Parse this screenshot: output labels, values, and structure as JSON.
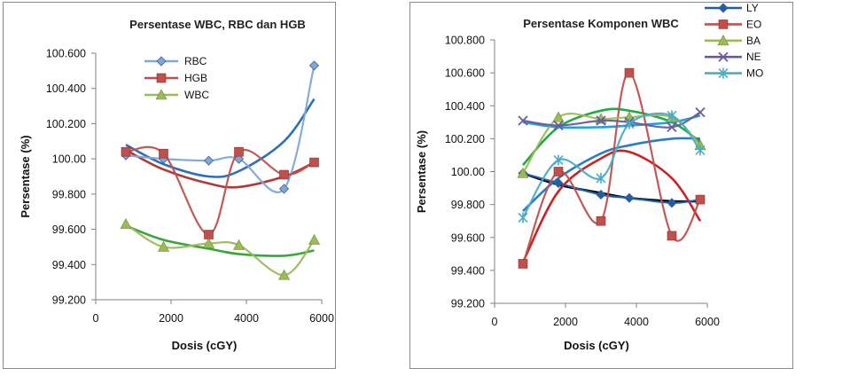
{
  "chart_data": [
    {
      "type": "line",
      "title": "Persentase WBC, RBC dan HGB",
      "xlabel": "Dosis (cGY)",
      "ylabel": "Persentase (%)",
      "xlim": [
        0,
        6000
      ],
      "ylim": [
        99.2,
        100.6
      ],
      "x_ticks": [
        0,
        2000,
        4000,
        6000
      ],
      "y_ticks": [
        "99.200",
        "99.400",
        "99.600",
        "99.800",
        "100.00",
        "100.200",
        "100.400",
        "100.600"
      ],
      "grid": false,
      "legend_position": "top-left",
      "series": [
        {
          "name": "RBC",
          "color": "#7fa7d8",
          "marker": "diamond",
          "x": [
            800,
            1800,
            3000,
            3800,
            5000,
            5800
          ],
          "y": [
            100.02,
            100.0,
            99.99,
            100.0,
            99.83,
            100.53
          ],
          "trend_color": "#2e6fb8",
          "trend": [
            [
              800,
              100.08
            ],
            [
              1800,
              99.97
            ],
            [
              3000,
              99.9
            ],
            [
              3800,
              99.93
            ],
            [
              5000,
              100.1
            ],
            [
              5800,
              100.34
            ]
          ]
        },
        {
          "name": "HGB",
          "color": "#c0504d",
          "marker": "square",
          "x": [
            800,
            1800,
            3000,
            3800,
            5000,
            5800
          ],
          "y": [
            100.04,
            100.03,
            99.57,
            100.04,
            99.91,
            99.98
          ],
          "trend_color": "#b03a36",
          "trend": [
            [
              800,
              100.05
            ],
            [
              1800,
              99.94
            ],
            [
              3000,
              99.86
            ],
            [
              3800,
              99.84
            ],
            [
              5000,
              99.9
            ],
            [
              5800,
              99.98
            ]
          ]
        },
        {
          "name": "WBC",
          "color": "#9bbb59",
          "marker": "triangle",
          "x": [
            800,
            1800,
            3000,
            3800,
            5000,
            5800
          ],
          "y": [
            99.63,
            99.5,
            99.52,
            99.51,
            99.34,
            99.54
          ],
          "trend_color": "#3aa63a",
          "trend": [
            [
              800,
              99.62
            ],
            [
              1800,
              99.54
            ],
            [
              3000,
              99.49
            ],
            [
              3800,
              99.46
            ],
            [
              5000,
              99.45
            ],
            [
              5800,
              99.48
            ]
          ]
        }
      ]
    },
    {
      "type": "line",
      "title": "Persentase Komponen WBC",
      "xlabel": "Dosis (cGY)",
      "ylabel": "Persentase (%)",
      "xlim": [
        0,
        6000
      ],
      "ylim": [
        99.2,
        100.8
      ],
      "x_ticks": [
        0,
        2000,
        4000,
        6000
      ],
      "y_ticks": [
        "99.200",
        "99.400",
        "99.600",
        "99.800",
        "100.00",
        "100.200",
        "100.400",
        "100.600",
        "100.800"
      ],
      "grid": false,
      "legend_position": "right",
      "series": [
        {
          "name": "LY",
          "color": "#1f5fa8",
          "marker": "diamond",
          "x": [
            800,
            1800,
            3000,
            3800,
            5000,
            5800
          ],
          "y": [
            99.99,
            99.93,
            99.86,
            99.84,
            99.81,
            99.83
          ],
          "trend_color": "#000000",
          "trend": [
            [
              800,
              99.99
            ],
            [
              1800,
              99.92
            ],
            [
              3000,
              99.87
            ],
            [
              3800,
              99.84
            ],
            [
              5000,
              99.82
            ],
            [
              5800,
              99.82
            ]
          ]
        },
        {
          "name": "EO",
          "color": "#c0504d",
          "marker": "square",
          "x": [
            800,
            1800,
            3000,
            3800,
            5000,
            5800
          ],
          "y": [
            99.44,
            100.0,
            99.7,
            100.6,
            99.61,
            99.83
          ],
          "trend_color": "#cc2222",
          "trend": [
            [
              800,
              99.45
            ],
            [
              1800,
              99.88
            ],
            [
              3000,
              100.08
            ],
            [
              3800,
              100.12
            ],
            [
              5000,
              99.96
            ],
            [
              5800,
              99.7
            ]
          ]
        },
        {
          "name": "BA",
          "color": "#9bbb59",
          "marker": "triangle",
          "x": [
            800,
            1800,
            3000,
            3800,
            5000,
            5800
          ],
          "y": [
            99.99,
            100.33,
            100.32,
            100.33,
            100.33,
            100.16
          ],
          "trend_color": "#22aa44",
          "trend": [
            [
              800,
              100.04
            ],
            [
              1800,
              100.27
            ],
            [
              3000,
              100.37
            ],
            [
              3800,
              100.37
            ],
            [
              5000,
              100.3
            ],
            [
              5800,
              100.18
            ]
          ]
        },
        {
          "name": "NE",
          "color": "#6a5a9a",
          "marker": "x",
          "x": [
            800,
            1800,
            3000,
            3800,
            5000,
            5800
          ],
          "y": [
            100.31,
            100.28,
            100.31,
            100.3,
            100.27,
            100.36
          ],
          "trend_color": "#22a0e0",
          "trend": [
            [
              800,
              100.3
            ],
            [
              1800,
              100.27
            ],
            [
              3000,
              100.27
            ],
            [
              3800,
              100.28
            ],
            [
              5000,
              100.3
            ],
            [
              5800,
              100.34
            ]
          ]
        },
        {
          "name": "MO",
          "color": "#4bacc6",
          "marker": "asterisk",
          "x": [
            800,
            1800,
            3000,
            3800,
            5000,
            5800
          ],
          "y": [
            99.72,
            100.07,
            99.96,
            100.29,
            100.34,
            100.13
          ],
          "trend_color": "#2a7dc0",
          "trend": [
            [
              800,
              99.76
            ],
            [
              1800,
              99.96
            ],
            [
              3000,
              100.11
            ],
            [
              3800,
              100.16
            ],
            [
              5000,
              100.2
            ],
            [
              5800,
              100.2
            ]
          ]
        }
      ]
    }
  ]
}
